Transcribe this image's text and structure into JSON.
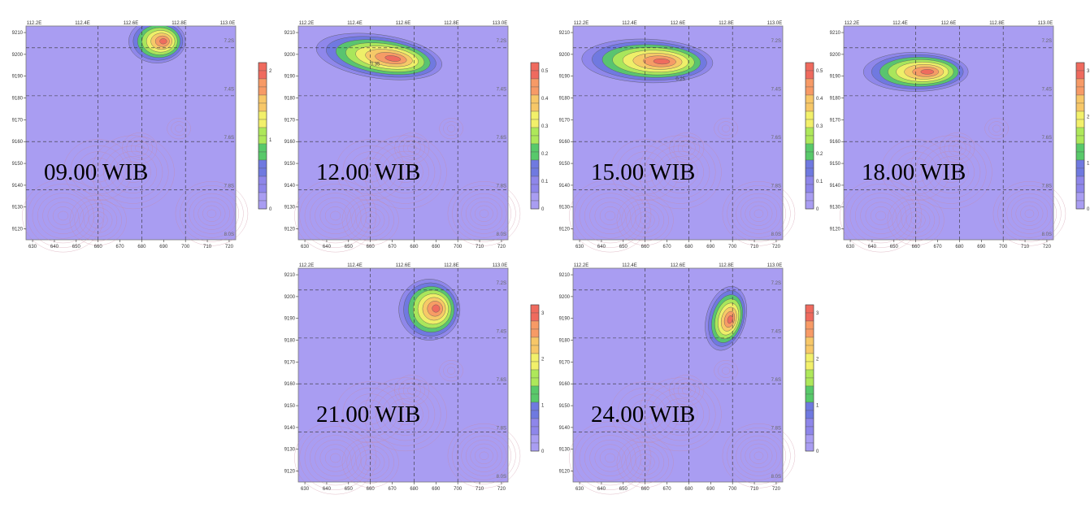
{
  "axes": {
    "x_ticks": [
      "630",
      "640",
      "650",
      "660",
      "670",
      "680",
      "690",
      "700",
      "710",
      "720"
    ],
    "y_ticks": [
      "9210",
      "9200",
      "9190",
      "9180",
      "9170",
      "9160",
      "9150",
      "9140",
      "9130",
      "9120"
    ],
    "lon_labels": [
      "112.2E",
      "112.4E",
      "112.6E",
      "112.8E",
      "113.0E"
    ],
    "lat_labels": [
      "7.2S",
      "7.4S",
      "7.6S",
      "7.8S",
      "8.0S"
    ]
  },
  "colors": {
    "background": "#a99df2",
    "bands": [
      "#a99df2",
      "#8e86ea",
      "#6f79e0",
      "#58c96a",
      "#aee85a",
      "#f2f06a",
      "#f7c768",
      "#f79a66",
      "#ef6a5e"
    ],
    "terrain_contour": "#c9879a"
  },
  "panels": [
    {
      "time_label": "09.00 WIB",
      "colorbar_ticks": [
        "2",
        "1",
        "0"
      ],
      "plume": {
        "cx": 687,
        "cy": 9206,
        "rx": 13,
        "ry": 10,
        "rot": 0
      }
    },
    {
      "time_label": "12.00 WIB",
      "colorbar_ticks": [
        "0.5",
        "0.4",
        "0.3",
        "0.2",
        "0.1",
        "0"
      ],
      "plume": {
        "cx": 664,
        "cy": 9199,
        "rx": 29,
        "ry": 10,
        "rot": 8
      },
      "contour_labels": [
        {
          "text": "0.35",
          "x": 660,
          "y": 9195
        }
      ]
    },
    {
      "time_label": "15.00 WIB",
      "colorbar_ticks": [
        "0.5",
        "0.4",
        "0.3",
        "0.2",
        "0.1",
        "0"
      ],
      "plume": {
        "cx": 661,
        "cy": 9197,
        "rx": 30,
        "ry": 10,
        "rot": 2
      },
      "contour_labels": [
        {
          "text": "0.25",
          "x": 674,
          "y": 9188
        }
      ]
    },
    {
      "time_label": "18.00 WIB",
      "colorbar_ticks": [
        "3",
        "2",
        "1",
        "0"
      ],
      "plume": {
        "cx": 660,
        "cy": 9192,
        "rx": 24,
        "ry": 9,
        "rot": 0
      }
    },
    {
      "time_label": "21.00 WIB",
      "colorbar_ticks": [
        "3",
        "2",
        "1",
        "0"
      ],
      "plume": {
        "cx": 687,
        "cy": 9194,
        "rx": 14,
        "ry": 14,
        "rot": -10
      }
    },
    {
      "time_label": "24.00 WIB",
      "colorbar_ticks": [
        "3",
        "2",
        "1",
        "0"
      ],
      "plume": {
        "cx": 697,
        "cy": 9190,
        "rx": 9,
        "ry": 15,
        "rot": 15
      }
    }
  ]
}
